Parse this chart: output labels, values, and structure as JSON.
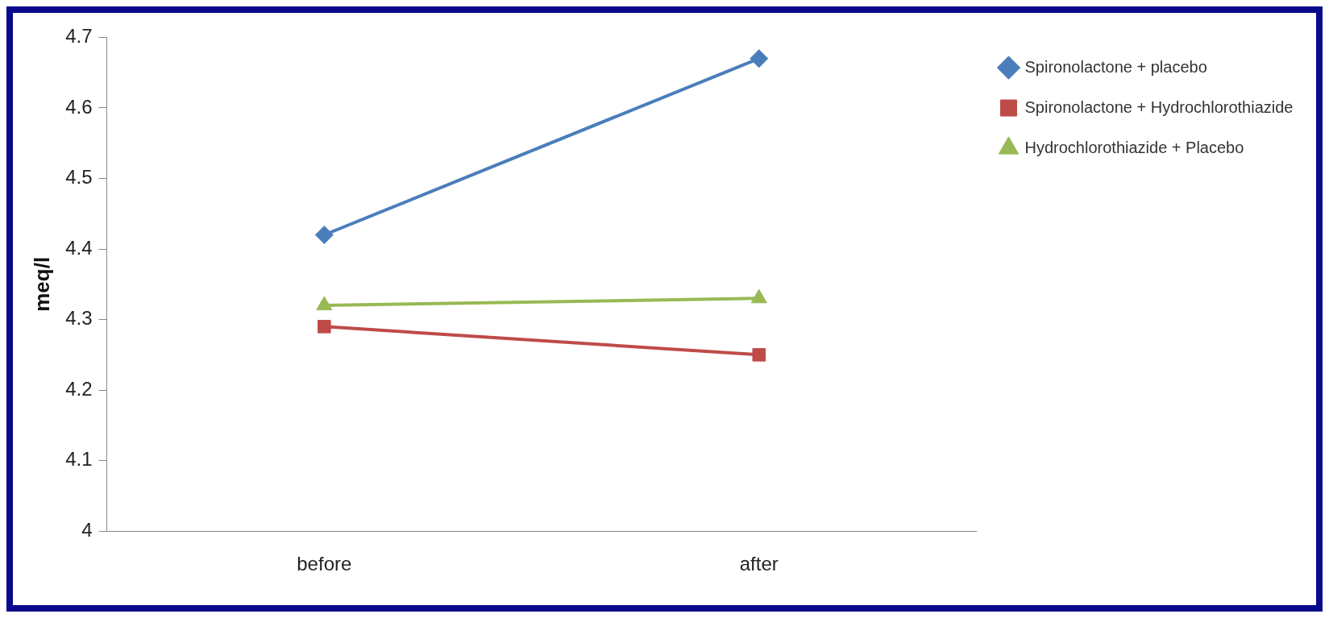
{
  "chart_data": {
    "type": "line",
    "ylabel": "meq/l",
    "categories": [
      "before",
      "after"
    ],
    "series": [
      {
        "name": "Spironolactone + placebo",
        "color": "#4a7ebb",
        "marker": "diamond",
        "values": [
          4.42,
          4.67
        ]
      },
      {
        "name": "Spironolactone + Hydrochlorothiazide",
        "color": "#be4b48",
        "marker": "square",
        "values": [
          4.29,
          4.25
        ]
      },
      {
        "name": "Hydrochlorothiazide + Placebo",
        "color": "#98b954",
        "marker": "triangle",
        "values": [
          4.32,
          4.33
        ]
      }
    ],
    "ylim": [
      4,
      4.7
    ],
    "yticks": [
      4,
      4.1,
      4.2,
      4.3,
      4.4,
      4.5,
      4.6,
      4.7
    ],
    "grid": false,
    "legend": "top right",
    "line_style": "solid"
  }
}
